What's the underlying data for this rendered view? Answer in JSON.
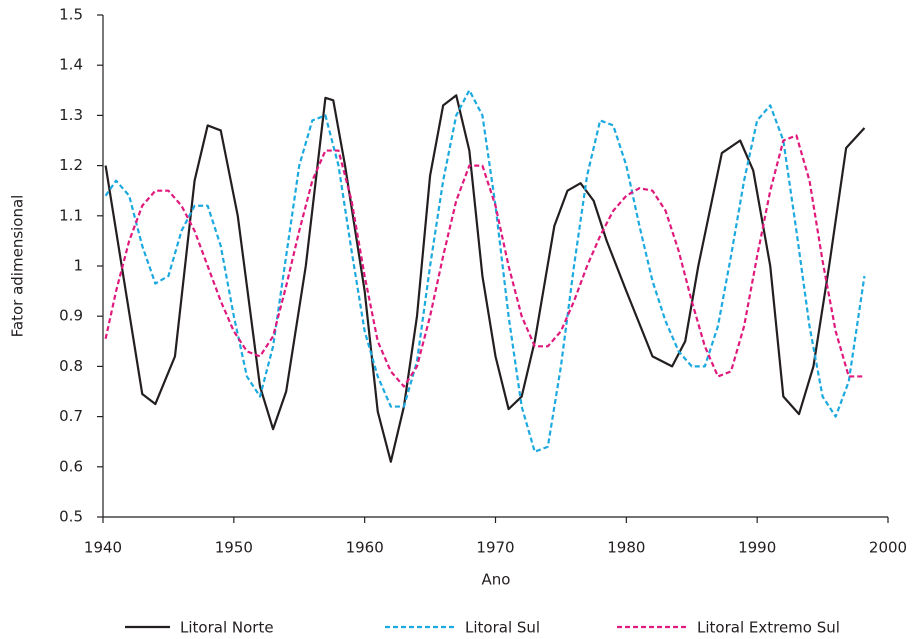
{
  "chart_data": {
    "type": "line",
    "x_label": "Ano",
    "y_label": "Fator adimensional",
    "xlim": [
      1940,
      2000
    ],
    "xticks": [
      1940,
      1950,
      1960,
      1970,
      1980,
      1990,
      2000
    ],
    "ylim": [
      0.5,
      1.5
    ],
    "yticks": [
      0.5,
      0.6,
      0.7,
      0.8,
      0.9,
      1,
      1.1,
      1.2,
      1.3,
      1.4,
      1.5
    ],
    "legend": "bottom",
    "series": [
      {
        "name": "Litoral Norte",
        "color": "#231f20",
        "dash": "solid",
        "x": [
          1940.2,
          1943,
          1944,
          1945.5,
          1947,
          1948,
          1949,
          1950.3,
          1952,
          1953,
          1954,
          1955.5,
          1957,
          1957.6,
          1958.5,
          1960,
          1961,
          1962,
          1963,
          1964,
          1965,
          1966,
          1967,
          1968,
          1969,
          1970,
          1971,
          1972,
          1973,
          1974.5,
          1975.5,
          1976.5,
          1977.5,
          1978.5,
          1980,
          1982,
          1983.5,
          1984.5,
          1985.5,
          1987.3,
          1988.7,
          1989.7,
          1991,
          1992,
          1993.2,
          1994.3,
          1995.5,
          1996.8,
          1998.2
        ],
        "values": [
          1.2,
          0.745,
          0.725,
          0.82,
          1.17,
          1.28,
          1.27,
          1.1,
          0.76,
          0.675,
          0.75,
          1.0,
          1.335,
          1.33,
          1.2,
          0.95,
          0.71,
          0.61,
          0.72,
          0.9,
          1.18,
          1.32,
          1.34,
          1.23,
          0.98,
          0.82,
          0.715,
          0.74,
          0.85,
          1.08,
          1.15,
          1.165,
          1.13,
          1.05,
          0.95,
          0.82,
          0.8,
          0.85,
          1.0,
          1.225,
          1.25,
          1.19,
          1.0,
          0.74,
          0.705,
          0.8,
          1.0,
          1.235,
          1.275
        ]
      },
      {
        "name": "Litoral Sul",
        "color": "#1ba9df",
        "dash": "dashed",
        "x": [
          1940.2,
          1941,
          1942,
          1943,
          1944,
          1945,
          1946,
          1947,
          1948,
          1949,
          1950,
          1951,
          1952,
          1953,
          1954,
          1955,
          1956,
          1957,
          1958,
          1959,
          1960,
          1961,
          1962,
          1963,
          1964,
          1965,
          1966,
          1967,
          1968,
          1969,
          1970,
          1971,
          1972,
          1973,
          1974,
          1975,
          1976,
          1977,
          1978,
          1979,
          1980,
          1981,
          1982,
          1983,
          1984,
          1985,
          1986,
          1987,
          1988,
          1989,
          1990,
          1991,
          1992,
          1993,
          1994,
          1995,
          1996,
          1997,
          1998.2
        ],
        "values": [
          1.14,
          1.17,
          1.14,
          1.04,
          0.965,
          0.98,
          1.07,
          1.12,
          1.12,
          1.04,
          0.9,
          0.78,
          0.74,
          0.84,
          1.02,
          1.2,
          1.29,
          1.3,
          1.2,
          1.03,
          0.87,
          0.78,
          0.72,
          0.72,
          0.81,
          1.0,
          1.17,
          1.3,
          1.35,
          1.3,
          1.12,
          0.9,
          0.72,
          0.63,
          0.64,
          0.8,
          1.0,
          1.18,
          1.29,
          1.28,
          1.2,
          1.08,
          0.97,
          0.89,
          0.83,
          0.8,
          0.8,
          0.88,
          1.02,
          1.17,
          1.29,
          1.32,
          1.25,
          1.07,
          0.88,
          0.74,
          0.7,
          0.77,
          0.98
        ]
      },
      {
        "name": "Litoral Extremo Sul",
        "color": "#e0197d",
        "dash": "dashed",
        "x": [
          1940.2,
          1941,
          1942,
          1943,
          1944,
          1945,
          1946,
          1947,
          1948,
          1949,
          1950,
          1951,
          1952,
          1953,
          1954,
          1955,
          1956,
          1957,
          1958,
          1959,
          1960,
          1961,
          1962,
          1963,
          1964,
          1965,
          1966,
          1967,
          1968,
          1969,
          1970,
          1971,
          1972,
          1973,
          1974,
          1975,
          1976,
          1977,
          1978,
          1979,
          1980,
          1981,
          1982,
          1983,
          1984,
          1985,
          1986,
          1987,
          1988,
          1989,
          1990,
          1991,
          1992,
          1993,
          1994,
          1995,
          1996,
          1997,
          1998.2
        ],
        "values": [
          0.855,
          0.95,
          1.05,
          1.12,
          1.15,
          1.15,
          1.12,
          1.07,
          1.0,
          0.93,
          0.87,
          0.83,
          0.82,
          0.86,
          0.96,
          1.07,
          1.17,
          1.23,
          1.23,
          1.13,
          0.98,
          0.85,
          0.79,
          0.76,
          0.8,
          0.9,
          1.02,
          1.13,
          1.2,
          1.2,
          1.12,
          1.0,
          0.9,
          0.84,
          0.84,
          0.87,
          0.93,
          1.0,
          1.06,
          1.11,
          1.14,
          1.155,
          1.15,
          1.11,
          1.03,
          0.93,
          0.84,
          0.78,
          0.79,
          0.88,
          1.02,
          1.15,
          1.25,
          1.26,
          1.17,
          1.01,
          0.87,
          0.78,
          0.78
        ]
      }
    ]
  }
}
